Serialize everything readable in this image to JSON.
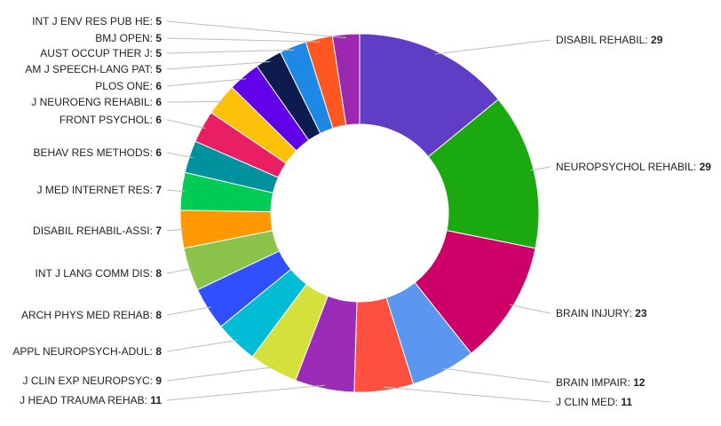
{
  "chart_data": {
    "type": "pie",
    "donut": true,
    "title": "",
    "legend": "none",
    "slices": [
      {
        "label": "DISABIL REHABIL",
        "value": 29,
        "color": "#5f3dc4"
      },
      {
        "label": "NEUROPSYCHOL REHABIL",
        "value": 29,
        "color": "#1aaa0f"
      },
      {
        "label": "BRAIN INJURY",
        "value": 23,
        "color": "#cc0066"
      },
      {
        "label": "BRAIN IMPAIR",
        "value": 12,
        "color": "#5b96f0"
      },
      {
        "label": "J CLIN MED",
        "value": 11,
        "color": "#ff5040"
      },
      {
        "label": "J HEAD TRAUMA REHAB",
        "value": 11,
        "color": "#9c2cb8"
      },
      {
        "label": "J CLIN EXP NEUROPSYC",
        "value": 9,
        "color": "#d4e03c"
      },
      {
        "label": "APPL NEUROPSYCH-ADUL",
        "value": 8,
        "color": "#00bcd4"
      },
      {
        "label": "ARCH PHYS MED REHAB",
        "value": 8,
        "color": "#3050ff"
      },
      {
        "label": "INT J LANG COMM DIS",
        "value": 8,
        "color": "#8bc34a"
      },
      {
        "label": "DISABIL REHABIL-ASSI",
        "value": 7,
        "color": "#ff9800"
      },
      {
        "label": "J MED INTERNET RES",
        "value": 7,
        "color": "#00cc55"
      },
      {
        "label": "BEHAV RES METHODS",
        "value": 6,
        "color": "#00919f"
      },
      {
        "label": "FRONT PSYCHOL",
        "value": 6,
        "color": "#e91e63"
      },
      {
        "label": "J NEUROENG REHABIL",
        "value": 6,
        "color": "#ffc107"
      },
      {
        "label": "PLOS ONE",
        "value": 6,
        "color": "#6200ea"
      },
      {
        "label": "AM J SPEECH-LANG PAT",
        "value": 5,
        "color": "#0d1b4f"
      },
      {
        "label": "AUST OCCUP THER J",
        "value": 5,
        "color": "#1e88e5"
      },
      {
        "label": "BMJ OPEN",
        "value": 5,
        "color": "#ff5722"
      },
      {
        "label": "INT J ENV RES PUB HE",
        "value": 5,
        "color": "#9c27b0"
      }
    ]
  }
}
